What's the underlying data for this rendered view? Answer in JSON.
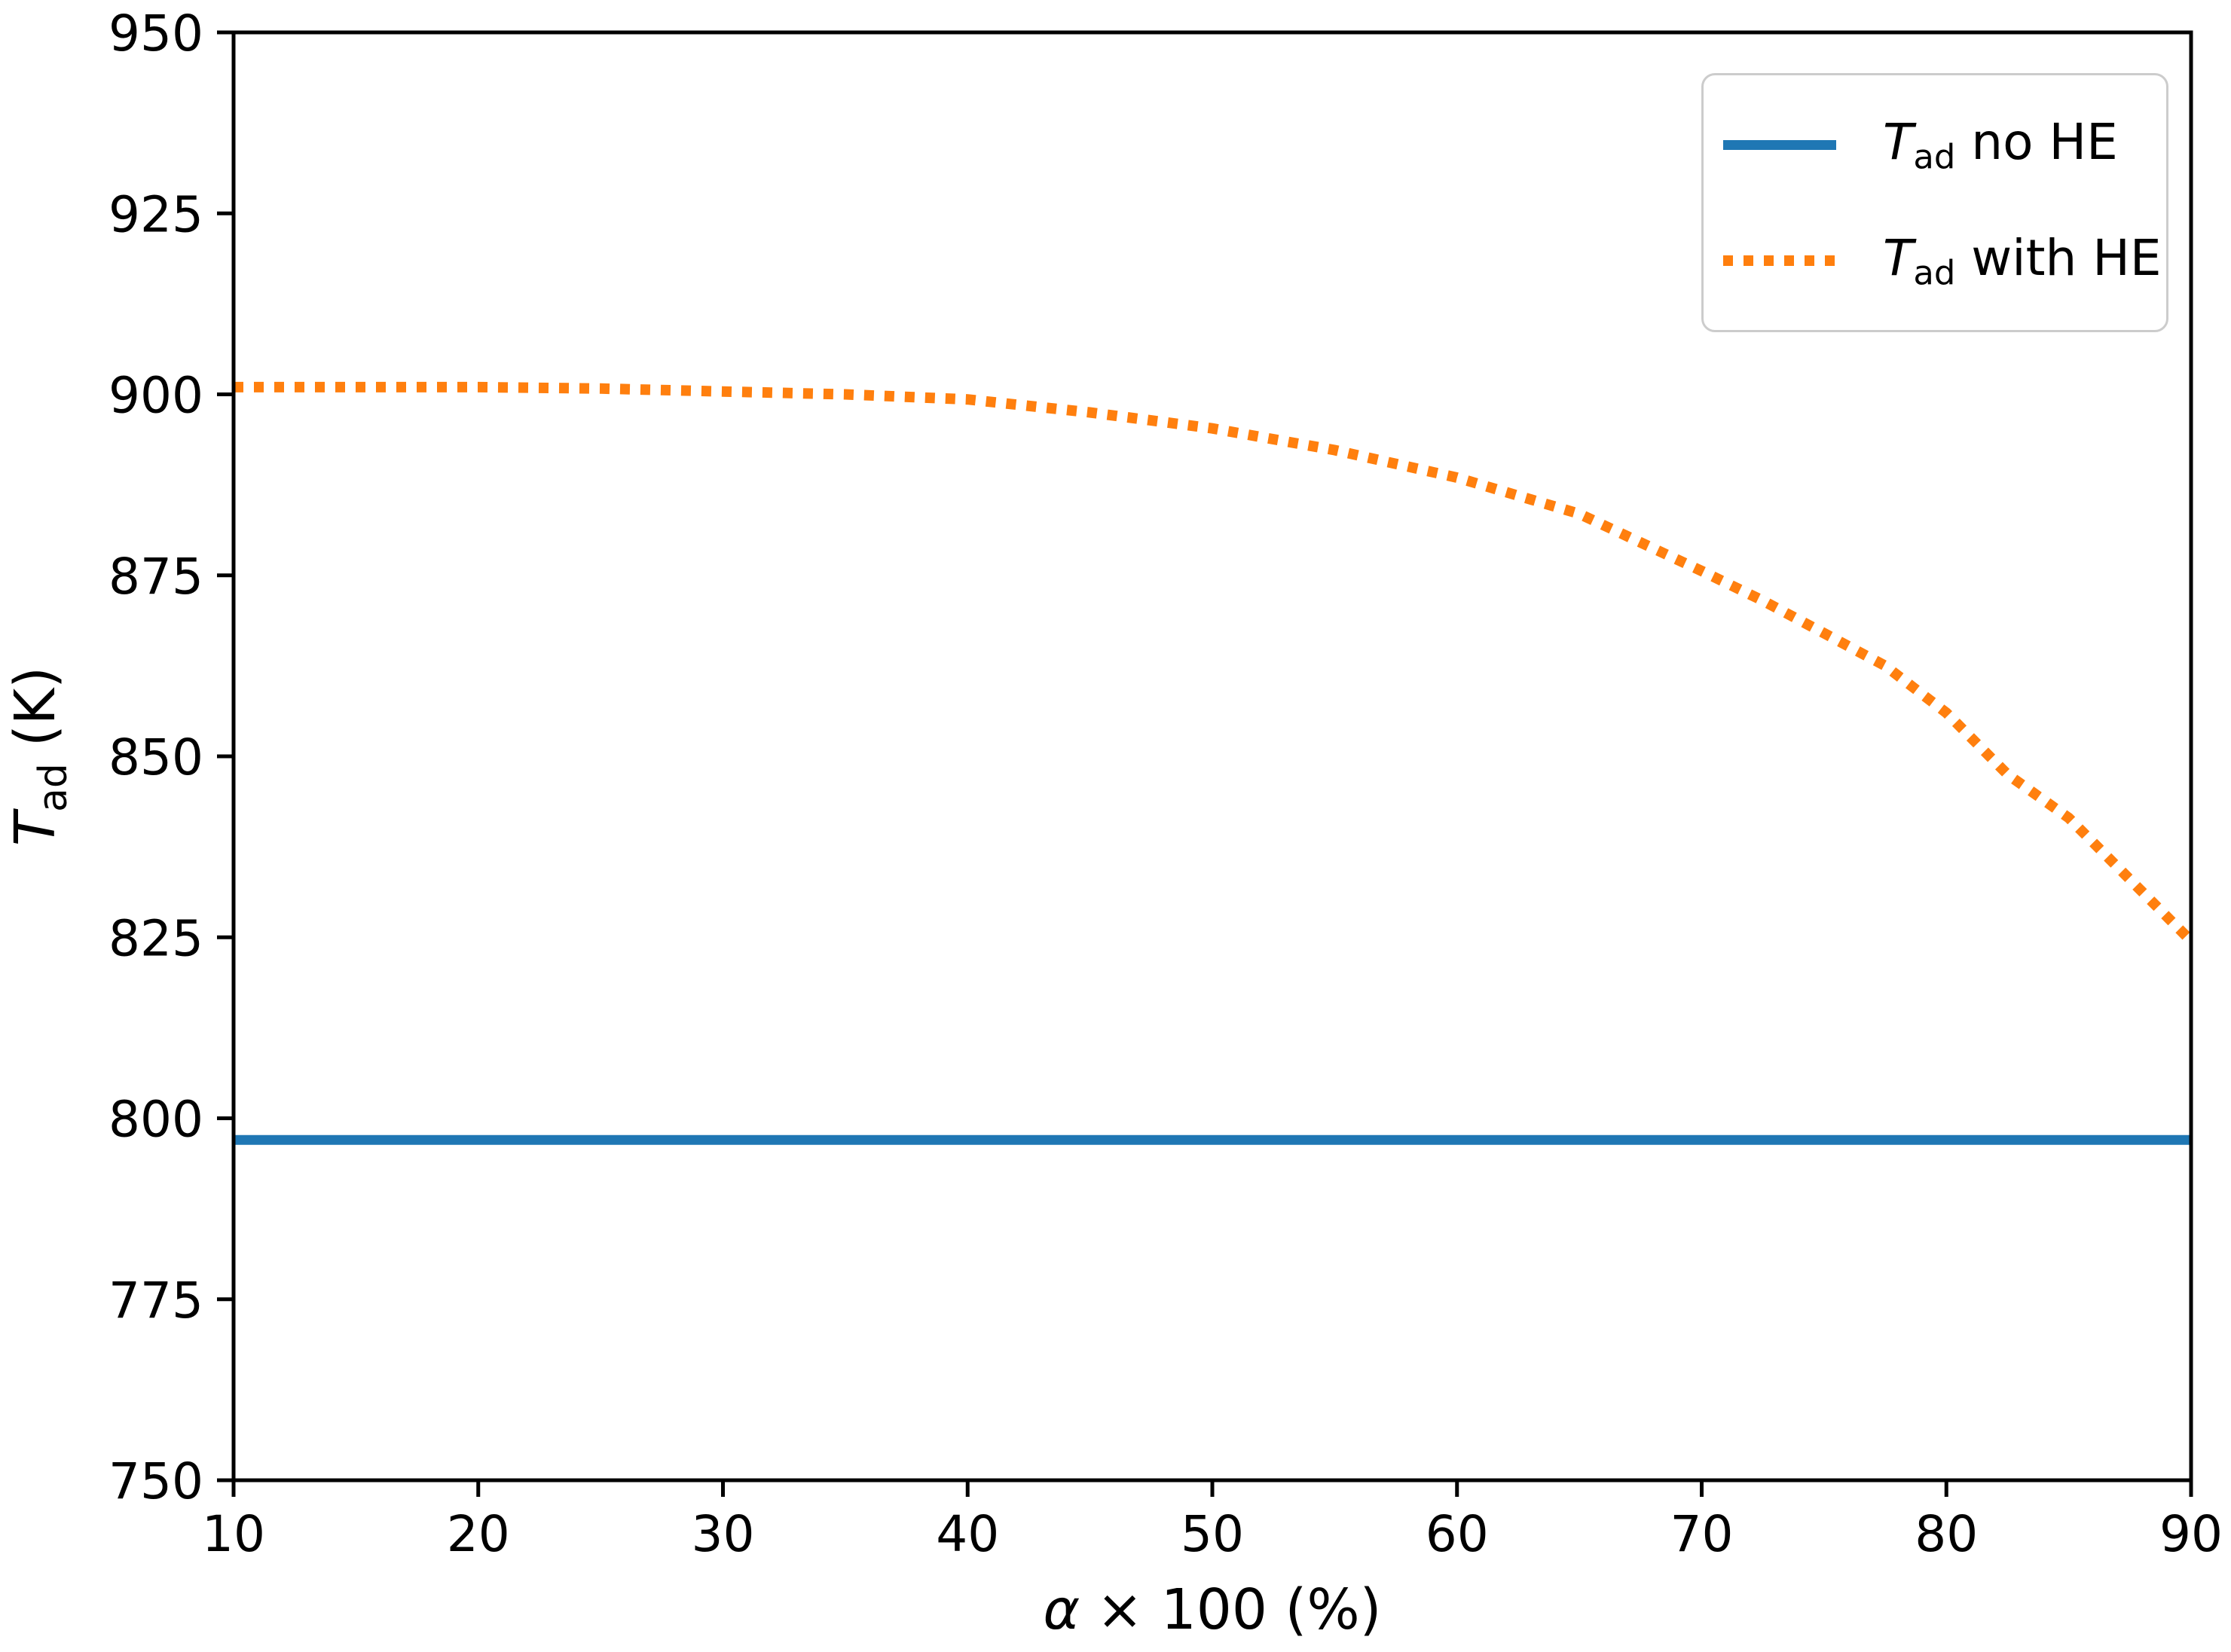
{
  "figure": {
    "background_color": "#ffffff",
    "spine_color": "#000000",
    "legend_border_color": "#cccccc"
  },
  "axes": {
    "x_label": {
      "symbol": "α",
      "rest": "× 100 (%)"
    },
    "y_label": {
      "symbol": "T",
      "sub": "ad",
      "rest": "(K)"
    }
  },
  "legend": {
    "position": "upper right",
    "items": [
      {
        "symbol": "T",
        "sub": "ad",
        "rest": " no HE"
      },
      {
        "symbol": "T",
        "sub": "ad",
        "rest": " with HE"
      }
    ]
  },
  "chart_data": {
    "type": "line",
    "title": "",
    "xlabel": "α × 100 (%)",
    "ylabel": "T_ad (K)",
    "xlim": [
      10,
      90
    ],
    "ylim": [
      750,
      950
    ],
    "xticks": [
      10,
      20,
      30,
      40,
      50,
      60,
      70,
      80,
      90
    ],
    "yticks": [
      750,
      775,
      800,
      825,
      850,
      875,
      900,
      925,
      950
    ],
    "grid": false,
    "legend_position": "upper right",
    "series": [
      {
        "name": "T_ad no HE",
        "color": "#1f77b4",
        "linestyle": "solid",
        "x": [
          10,
          90
        ],
        "y": [
          797,
          797
        ]
      },
      {
        "name": "T_ad with HE",
        "color": "#ff7f0e",
        "linestyle": "dotted",
        "x": [
          10,
          15,
          20,
          25,
          30,
          35,
          40,
          45,
          50,
          55,
          60,
          65,
          70,
          72.5,
          75,
          77.5,
          80,
          82.5,
          85,
          87.5,
          90
        ],
        "y": [
          901,
          901,
          901,
          900.8,
          900.4,
          900,
          899.3,
          897.5,
          895.3,
          892.3,
          888.5,
          883.5,
          875.6,
          871.5,
          867,
          862.5,
          856,
          847.5,
          841.5,
          833,
          824.5
        ]
      }
    ]
  }
}
